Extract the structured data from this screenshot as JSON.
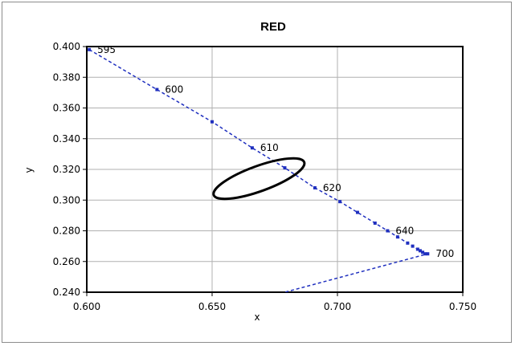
{
  "chart_data": {
    "type": "line",
    "title": "RED",
    "xlabel": "x",
    "ylabel": "y",
    "xlim": [
      0.6,
      0.75
    ],
    "ylim": [
      0.24,
      0.4
    ],
    "x_ticks": [
      "0.600",
      "0.650",
      "0.700",
      "0.750"
    ],
    "y_ticks": [
      "0.240",
      "0.260",
      "0.280",
      "0.300",
      "0.320",
      "0.340",
      "0.360",
      "0.380",
      "0.400"
    ],
    "grid": true,
    "legend": "none",
    "colors": {
      "locus": "#1f2fbf",
      "ellipse": "#000000",
      "grid": "#b0b0b0"
    },
    "series": [
      {
        "points": [
          {
            "x": 0.601,
            "y": 0.398
          },
          {
            "x": 0.628,
            "y": 0.372
          },
          {
            "x": 0.65,
            "y": 0.351
          },
          {
            "x": 0.666,
            "y": 0.334
          },
          {
            "x": 0.679,
            "y": 0.321
          },
          {
            "x": 0.691,
            "y": 0.308
          },
          {
            "x": 0.701,
            "y": 0.299
          },
          {
            "x": 0.708,
            "y": 0.292
          },
          {
            "x": 0.715,
            "y": 0.285
          },
          {
            "x": 0.72,
            "y": 0.28
          },
          {
            "x": 0.724,
            "y": 0.276
          },
          {
            "x": 0.728,
            "y": 0.272
          },
          {
            "x": 0.73,
            "y": 0.27
          },
          {
            "x": 0.732,
            "y": 0.268
          },
          {
            "x": 0.733,
            "y": 0.267
          },
          {
            "x": 0.734,
            "y": 0.266
          },
          {
            "x": 0.735,
            "y": 0.265
          },
          {
            "x": 0.736,
            "y": 0.265
          },
          {
            "x": 0.679,
            "y": 0.24
          }
        ]
      }
    ],
    "wavelength_labels": [
      {
        "text": "595",
        "x": 0.601,
        "y": 0.398
      },
      {
        "text": "600",
        "x": 0.628,
        "y": 0.372
      },
      {
        "text": "610",
        "x": 0.666,
        "y": 0.334
      },
      {
        "text": "620",
        "x": 0.691,
        "y": 0.308
      },
      {
        "text": "640",
        "x": 0.72,
        "y": 0.28
      },
      {
        "text": "700",
        "x": 0.736,
        "y": 0.265
      }
    ],
    "ellipse": {
      "cx": 0.6687,
      "cy": 0.314,
      "rx": 0.0192,
      "ry": 0.0082,
      "angle_deg": -20
    }
  }
}
